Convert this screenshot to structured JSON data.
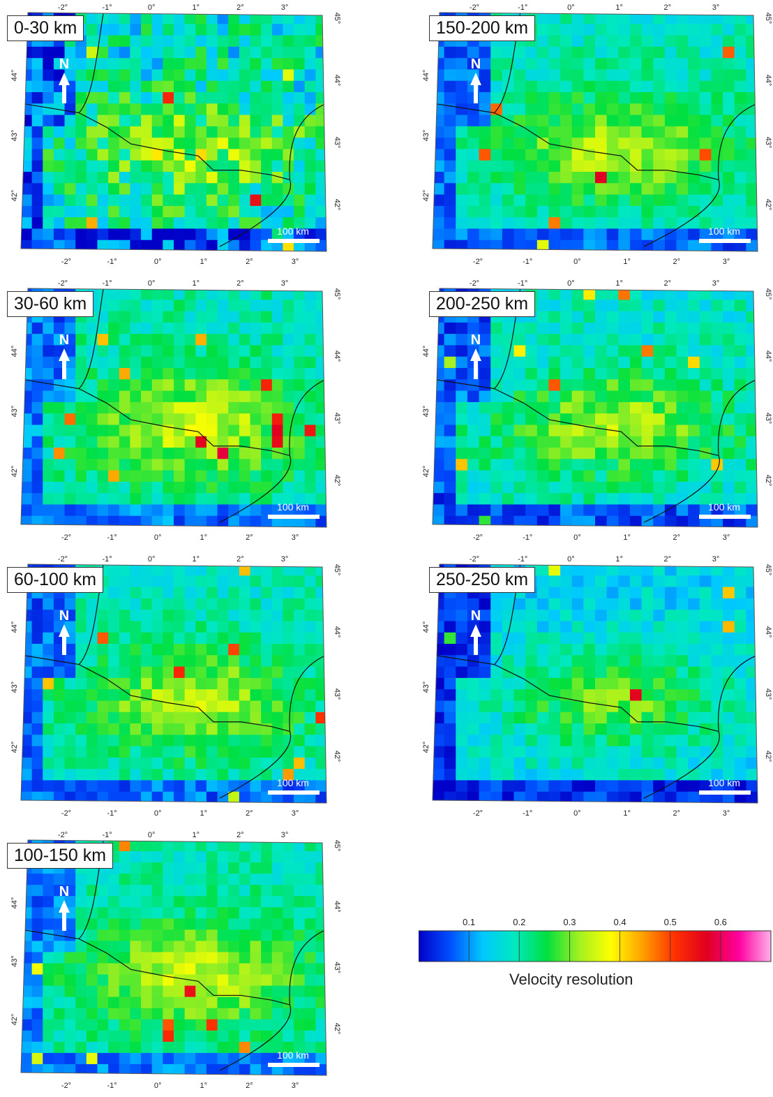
{
  "panels": [
    {
      "id": "p1",
      "label": "0-30 km",
      "seed": 11,
      "noise": 0.85,
      "base": 0.18
    },
    {
      "id": "p2",
      "label": "30-60 km",
      "seed": 23,
      "noise": 0.45,
      "base": 0.2
    },
    {
      "id": "p3",
      "label": "60-100 km",
      "seed": 37,
      "noise": 0.4,
      "base": 0.19
    },
    {
      "id": "p4",
      "label": "100-150 km",
      "seed": 41,
      "noise": 0.38,
      "base": 0.2
    },
    {
      "id": "p5",
      "label": "150-200 km",
      "seed": 53,
      "noise": 0.4,
      "base": 0.19
    },
    {
      "id": "p6",
      "label": "200-250 km",
      "seed": 67,
      "noise": 0.45,
      "base": 0.18
    },
    {
      "id": "p7",
      "label": "250-250 km",
      "seed": 79,
      "noise": 0.42,
      "base": 0.15
    }
  ],
  "lon_ticks": [
    "-2°",
    "-1°",
    "0°",
    "1°",
    "2°",
    "3°"
  ],
  "top_lon_ticks": [
    "-2°",
    "-1°",
    "0°",
    "1°",
    "2°",
    "3°"
  ],
  "lat_ticks": [
    "44°",
    "43°",
    "42°"
  ],
  "right_lat_ticks": [
    "45°",
    "44°",
    "43°",
    "42°"
  ],
  "north_label": "N",
  "scale_label": "100 km",
  "colorbar": {
    "title": "Velocity resolution",
    "ticks": [
      "0.1",
      "0.2",
      "0.3",
      "0.4",
      "0.5",
      "0.6"
    ],
    "tick_values": [
      0.1,
      0.2,
      0.3,
      0.4,
      0.5,
      0.6
    ],
    "min": 0.0,
    "max": 0.7,
    "colors": [
      "#0000c8",
      "#0050ff",
      "#00c8ff",
      "#00e8c0",
      "#00e040",
      "#a0f020",
      "#ffff00",
      "#ffa000",
      "#ff3000",
      "#e00020",
      "#ff00a0",
      "#ffb0e8"
    ]
  }
}
